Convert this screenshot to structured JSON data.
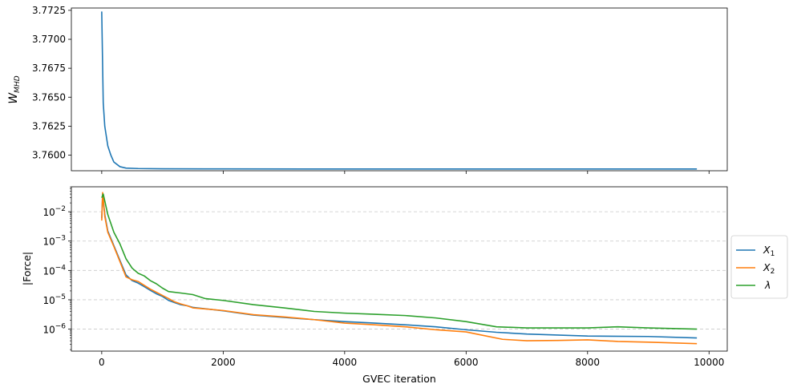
{
  "chart_data": [
    {
      "type": "line",
      "title": "",
      "xlabel": "",
      "ylabel": "W_MHD",
      "ylabel_main": "W",
      "ylabel_sub": "MHD",
      "xlim": [
        -500,
        10300
      ],
      "ylim": [
        3.75865,
        3.7727
      ],
      "xticks": [
        0,
        2000,
        4000,
        6000,
        8000,
        10000
      ],
      "xtick_labels_visible": false,
      "yticks": [
        3.76,
        3.7625,
        3.765,
        3.7675,
        3.77,
        3.7725
      ],
      "ytick_labels": [
        "3.7600",
        "3.7625",
        "3.7650",
        "3.7675",
        "3.7700",
        "3.7725"
      ],
      "grid": false,
      "series": [
        {
          "color": "#1f77b4",
          "x": [
            0,
            25,
            50,
            100,
            150,
            200,
            300,
            400,
            600,
            1000,
            2000,
            4000,
            6000,
            8000,
            9800
          ],
          "y": [
            3.7724,
            3.7645,
            3.7625,
            3.7608,
            3.76,
            3.7594,
            3.759,
            3.75888,
            3.75884,
            3.75882,
            3.75881,
            3.7588,
            3.7588,
            3.7588,
            3.7588
          ]
        }
      ]
    },
    {
      "type": "line",
      "title": "",
      "xlabel": "GVEC iteration",
      "ylabel": "|Force|",
      "scale_y": "log",
      "xlim": [
        -500,
        10300
      ],
      "ylim_log10": [
        -6.75,
        -1.15
      ],
      "xticks": [
        0,
        2000,
        4000,
        6000,
        8000,
        10000
      ],
      "xtick_labels": [
        "0",
        "2000",
        "4000",
        "6000",
        "8000",
        "10000"
      ],
      "yticks_log10": [
        -6,
        -5,
        -4,
        -3,
        -2
      ],
      "ytick_label_base": "10",
      "ytick_label_exponents": [
        "−6",
        "−5",
        "−4",
        "−3",
        "−2"
      ],
      "grid": "y-dashed",
      "legend": "right-outside",
      "series": [
        {
          "name": "X1",
          "name_main": "X",
          "name_sub": "1",
          "color": "#1f77b4",
          "x": [
            0,
            15,
            50,
            100,
            200,
            300,
            400,
            500,
            600,
            700,
            800,
            900,
            1000,
            1100,
            1200,
            1300,
            1400,
            1500,
            2000,
            2500,
            3000,
            3500,
            4000,
            4500,
            5000,
            5500,
            6000,
            6500,
            7000,
            8000,
            9000,
            9800
          ],
          "y": [
            0.006,
            0.04,
            0.008,
            0.0022,
            0.0007,
            0.00022,
            7e-05,
            4.5e-05,
            3.7e-05,
            2.8e-05,
            2.1e-05,
            1.6e-05,
            1.3e-05,
            9.5e-06,
            8e-06,
            6.8e-06,
            6.3e-06,
            5.5e-06,
            4.2e-06,
            3e-06,
            2.5e-06,
            2.1e-06,
            1.8e-06,
            1.6e-06,
            1.4e-06,
            1.2e-06,
            9.5e-07,
            7.8e-07,
            6.8e-07,
            5.8e-07,
            5.6e-07,
            5e-07
          ]
        },
        {
          "name": "X2",
          "name_main": "X",
          "name_sub": "2",
          "color": "#ff7f0e",
          "x": [
            0,
            15,
            50,
            100,
            200,
            300,
            400,
            500,
            600,
            700,
            800,
            900,
            1000,
            1100,
            1200,
            1300,
            1400,
            1500,
            2000,
            2500,
            3000,
            3500,
            4000,
            4500,
            5000,
            5500,
            6000,
            6300,
            6600,
            7000,
            7500,
            8000,
            8500,
            9000,
            9800
          ],
          "y": [
            0.005,
            0.045,
            0.007,
            0.002,
            0.00065,
            0.0002,
            6e-05,
            4.8e-05,
            4.2e-05,
            3.1e-05,
            2.3e-05,
            1.8e-05,
            1.4e-05,
            1.1e-05,
            8.5e-06,
            7.2e-06,
            6.3e-06,
            5.3e-06,
            4.3e-06,
            3.1e-06,
            2.6e-06,
            2.1e-06,
            1.6e-06,
            1.4e-06,
            1.2e-06,
            9.5e-07,
            8e-07,
            6e-07,
            4.5e-07,
            4e-07,
            4.1e-07,
            4.3e-07,
            3.8e-07,
            3.6e-07,
            3.2e-07
          ]
        },
        {
          "name": "λ",
          "color": "#2ca02c",
          "x": [
            0,
            25,
            100,
            200,
            300,
            400,
            500,
            600,
            700,
            800,
            900,
            1000,
            1100,
            1300,
            1500,
            1700,
            2000,
            2500,
            3000,
            3500,
            4000,
            4500,
            5000,
            5500,
            6000,
            6500,
            7000,
            8000,
            8500,
            9000,
            9800
          ],
          "y": [
            0.03,
            0.04,
            0.008,
            0.002,
            0.0008,
            0.00025,
            0.00012,
            8e-05,
            6.5e-05,
            4.5e-05,
            3.5e-05,
            2.5e-05,
            1.9e-05,
            1.7e-05,
            1.5e-05,
            1.1e-05,
            9.5e-06,
            6.8e-06,
            5.3e-06,
            4e-06,
            3.5e-06,
            3.2e-06,
            2.9e-06,
            2.4e-06,
            1.8e-06,
            1.2e-06,
            1.1e-06,
            1.1e-06,
            1.2e-06,
            1.1e-06,
            1e-06
          ]
        }
      ]
    }
  ]
}
